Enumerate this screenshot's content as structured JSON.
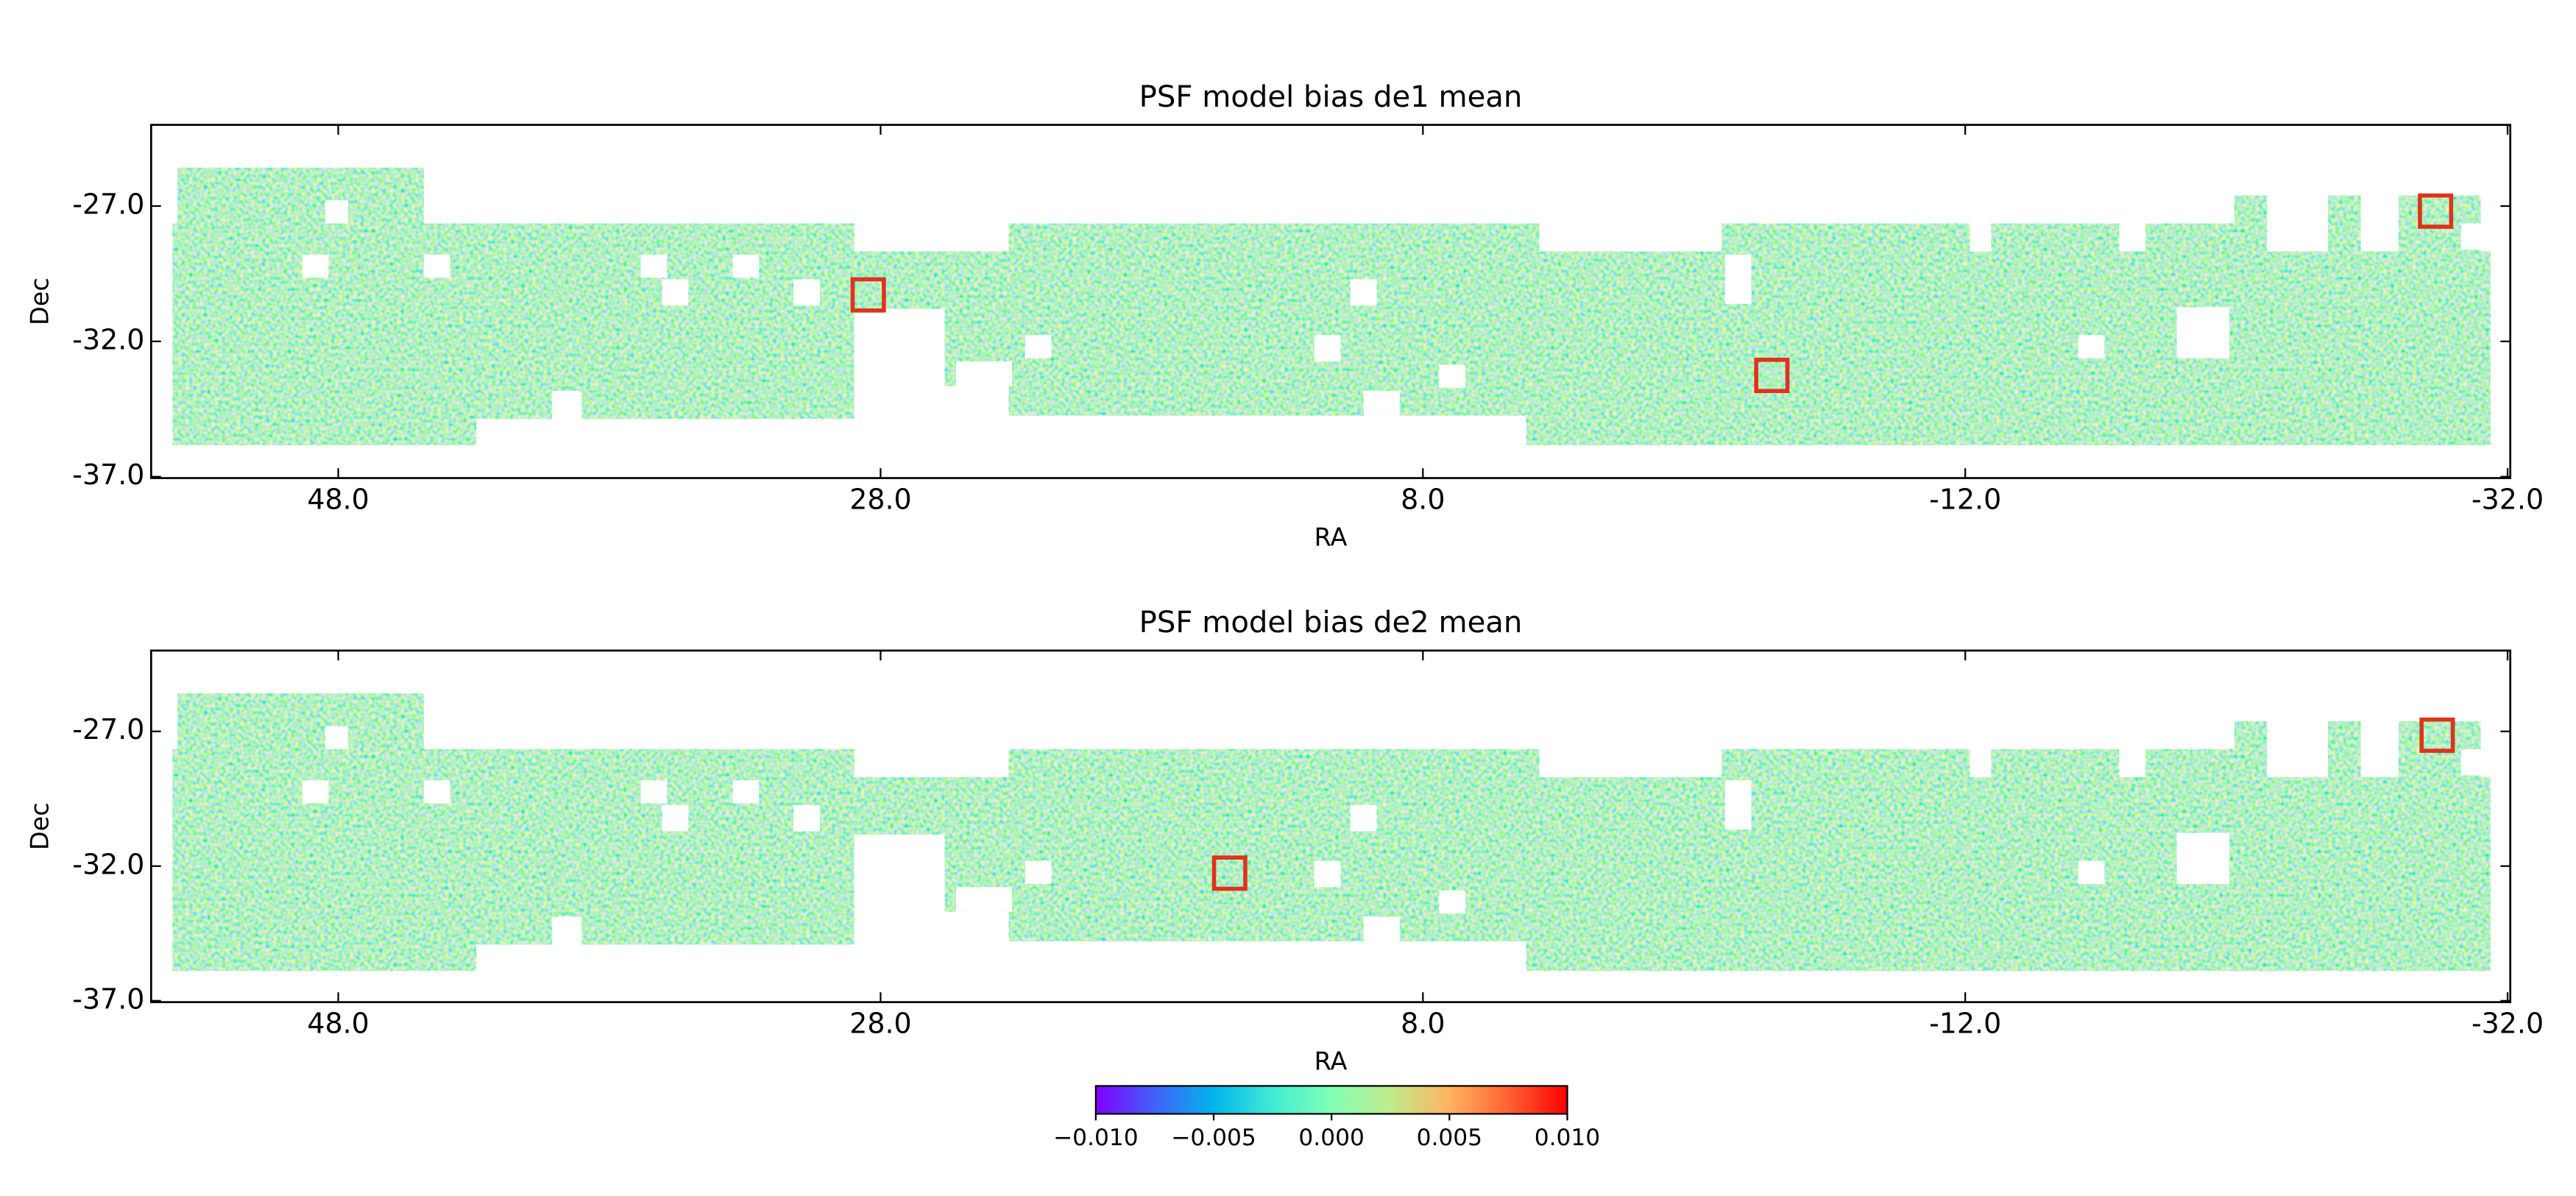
{
  "chart_data": [
    {
      "type": "heatmap",
      "title": "PSF model bias de1 mean",
      "xlabel": "RA",
      "ylabel": "Dec",
      "xlim": [
        54.9,
        -32.1
      ],
      "ylim": [
        -37.05,
        -24.0
      ],
      "xticks": [
        {
          "value": 48,
          "label": "48.0"
        },
        {
          "value": 28,
          "label": "28.0"
        },
        {
          "value": 8,
          "label": "8.0"
        },
        {
          "value": -12,
          "label": "-12.0"
        },
        {
          "value": -32,
          "label": "-32.0"
        }
      ],
      "yticks": [
        {
          "value": -27,
          "label": "-27.0"
        },
        {
          "value": -32,
          "label": "-32.0"
        },
        {
          "value": -37,
          "label": "-37.0"
        }
      ]
    },
    {
      "type": "heatmap",
      "title": "PSF model bias de2 mean",
      "xlabel": "RA",
      "ylabel": "Dec",
      "xlim": [
        54.9,
        -32.1
      ],
      "ylim": [
        -37.05,
        -24.0
      ],
      "xticks": [
        {
          "value": 48,
          "label": "48.0"
        },
        {
          "value": 28,
          "label": "28.0"
        },
        {
          "value": 8,
          "label": "8.0"
        },
        {
          "value": -12,
          "label": "-12.0"
        },
        {
          "value": -32,
          "label": "-32.0"
        }
      ],
      "yticks": [
        {
          "value": -27,
          "label": "-27.0"
        },
        {
          "value": -32,
          "label": "-32.0"
        },
        {
          "value": -37,
          "label": "-37.0"
        }
      ]
    }
  ],
  "colorbar": {
    "colormap": "rainbow",
    "clim": [
      -0.01,
      0.01
    ],
    "ticks": [
      {
        "value": -0.01,
        "label": "−0.010"
      },
      {
        "value": -0.005,
        "label": "−0.005"
      },
      {
        "value": 0,
        "label": "0.000"
      },
      {
        "value": 0.005,
        "label": "0.005"
      },
      {
        "value": 0.01,
        "label": "0.010"
      }
    ]
  }
}
